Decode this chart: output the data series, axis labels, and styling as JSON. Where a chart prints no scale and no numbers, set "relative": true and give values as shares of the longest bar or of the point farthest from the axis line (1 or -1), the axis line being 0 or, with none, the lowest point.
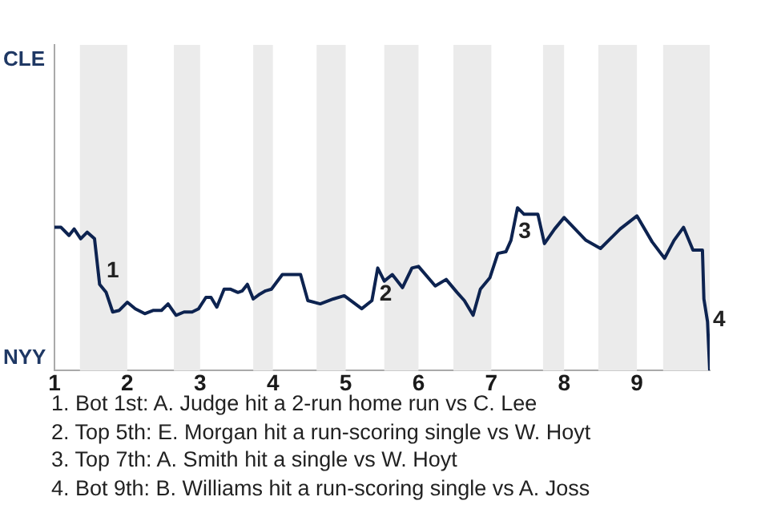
{
  "chart_data": {
    "type": "line",
    "relative": true,
    "xlim": [
      1,
      10
    ],
    "xticks": [
      1,
      2,
      3,
      4,
      5,
      6,
      7,
      8,
      9
    ],
    "legend": false,
    "marker": "none",
    "line_style": "solid",
    "bands": [
      {
        "axis": "x",
        "from": 1.35,
        "to": 2,
        "color": "#ebebeb"
      },
      {
        "axis": "x",
        "from": 2.64,
        "to": 3,
        "color": "#ebebeb"
      },
      {
        "axis": "x",
        "from": 3.73,
        "to": 4,
        "color": "#ebebeb"
      },
      {
        "axis": "x",
        "from": 4.6,
        "to": 5,
        "color": "#ebebeb"
      },
      {
        "axis": "x",
        "from": 5.53,
        "to": 6,
        "color": "#ebebeb"
      },
      {
        "axis": "x",
        "from": 6.48,
        "to": 7,
        "color": "#ebebeb"
      },
      {
        "axis": "x",
        "from": 7.71,
        "to": 8,
        "color": "#ebebeb"
      },
      {
        "axis": "x",
        "from": 8.47,
        "to": 9,
        "color": "#ebebeb"
      },
      {
        "axis": "x",
        "from": 9.36,
        "to": 10,
        "color": "#ebebeb"
      }
    ],
    "x": [
      1.0,
      1.09,
      1.2,
      1.27,
      1.36,
      1.45,
      1.55,
      1.62,
      1.71,
      1.8,
      1.89,
      2.0,
      2.11,
      2.24,
      2.36,
      2.47,
      2.56,
      2.67,
      2.78,
      2.89,
      2.98,
      3.08,
      3.15,
      3.23,
      3.33,
      3.42,
      3.52,
      3.58,
      3.65,
      3.73,
      3.82,
      3.9,
      3.98,
      4.13,
      4.38,
      4.48,
      4.65,
      4.83,
      4.98,
      5.22,
      5.36,
      5.44,
      5.53,
      5.64,
      5.78,
      5.91,
      6.0,
      6.23,
      6.38,
      6.53,
      6.63,
      6.75,
      6.85,
      6.98,
      7.09,
      7.2,
      7.27,
      7.36,
      7.45,
      7.64,
      7.73,
      7.87,
      8.0,
      8.3,
      8.5,
      8.77,
      9.0,
      9.21,
      9.38,
      9.51,
      9.64,
      9.77,
      9.9,
      9.92,
      9.97,
      10
    ],
    "series": [
      {
        "color": "#0d2350",
        "values": [
          0.88,
          0.88,
          0.83,
          0.87,
          0.81,
          0.85,
          0.81,
          0.53,
          0.48,
          0.36,
          0.37,
          0.42,
          0.38,
          0.35,
          0.37,
          0.37,
          0.41,
          0.34,
          0.36,
          0.36,
          0.38,
          0.45,
          0.45,
          0.39,
          0.5,
          0.5,
          0.48,
          0.49,
          0.53,
          0.44,
          0.47,
          0.49,
          0.5,
          0.59,
          0.59,
          0.43,
          0.41,
          0.44,
          0.46,
          0.38,
          0.43,
          0.63,
          0.55,
          0.59,
          0.51,
          0.63,
          0.64,
          0.52,
          0.56,
          0.48,
          0.43,
          0.34,
          0.5,
          0.57,
          0.72,
          0.73,
          0.8,
          1,
          0.96,
          0.96,
          0.78,
          0.87,
          0.94,
          0.8,
          0.75,
          0.87,
          0.95,
          0.79,
          0.69,
          0.8,
          0.88,
          0.74,
          0.74,
          0.44,
          0.3,
          0
        ]
      }
    ],
    "annotations": [
      "CLE",
      "NYY",
      {
        "text": "1",
        "x": 1.67,
        "y": 0.61
      },
      {
        "text": "2",
        "x": 5.42,
        "y": 0.47
      },
      {
        "text": "3",
        "x": 7.33,
        "y": 0.85
      },
      {
        "text": "4",
        "x": 10,
        "y": 0.31
      },
      "1. Bot 1st: A. Judge hit a 2-run home run vs C. Lee",
      "2. Top 5th: E. Morgan hit a run-scoring single vs W. Hoyt",
      "3. Top 7th: A. Smith hit a single vs W. Hoyt",
      "4. Bot 9th: B. Williams hit a run-scoring single vs A. Joss"
    ]
  }
}
